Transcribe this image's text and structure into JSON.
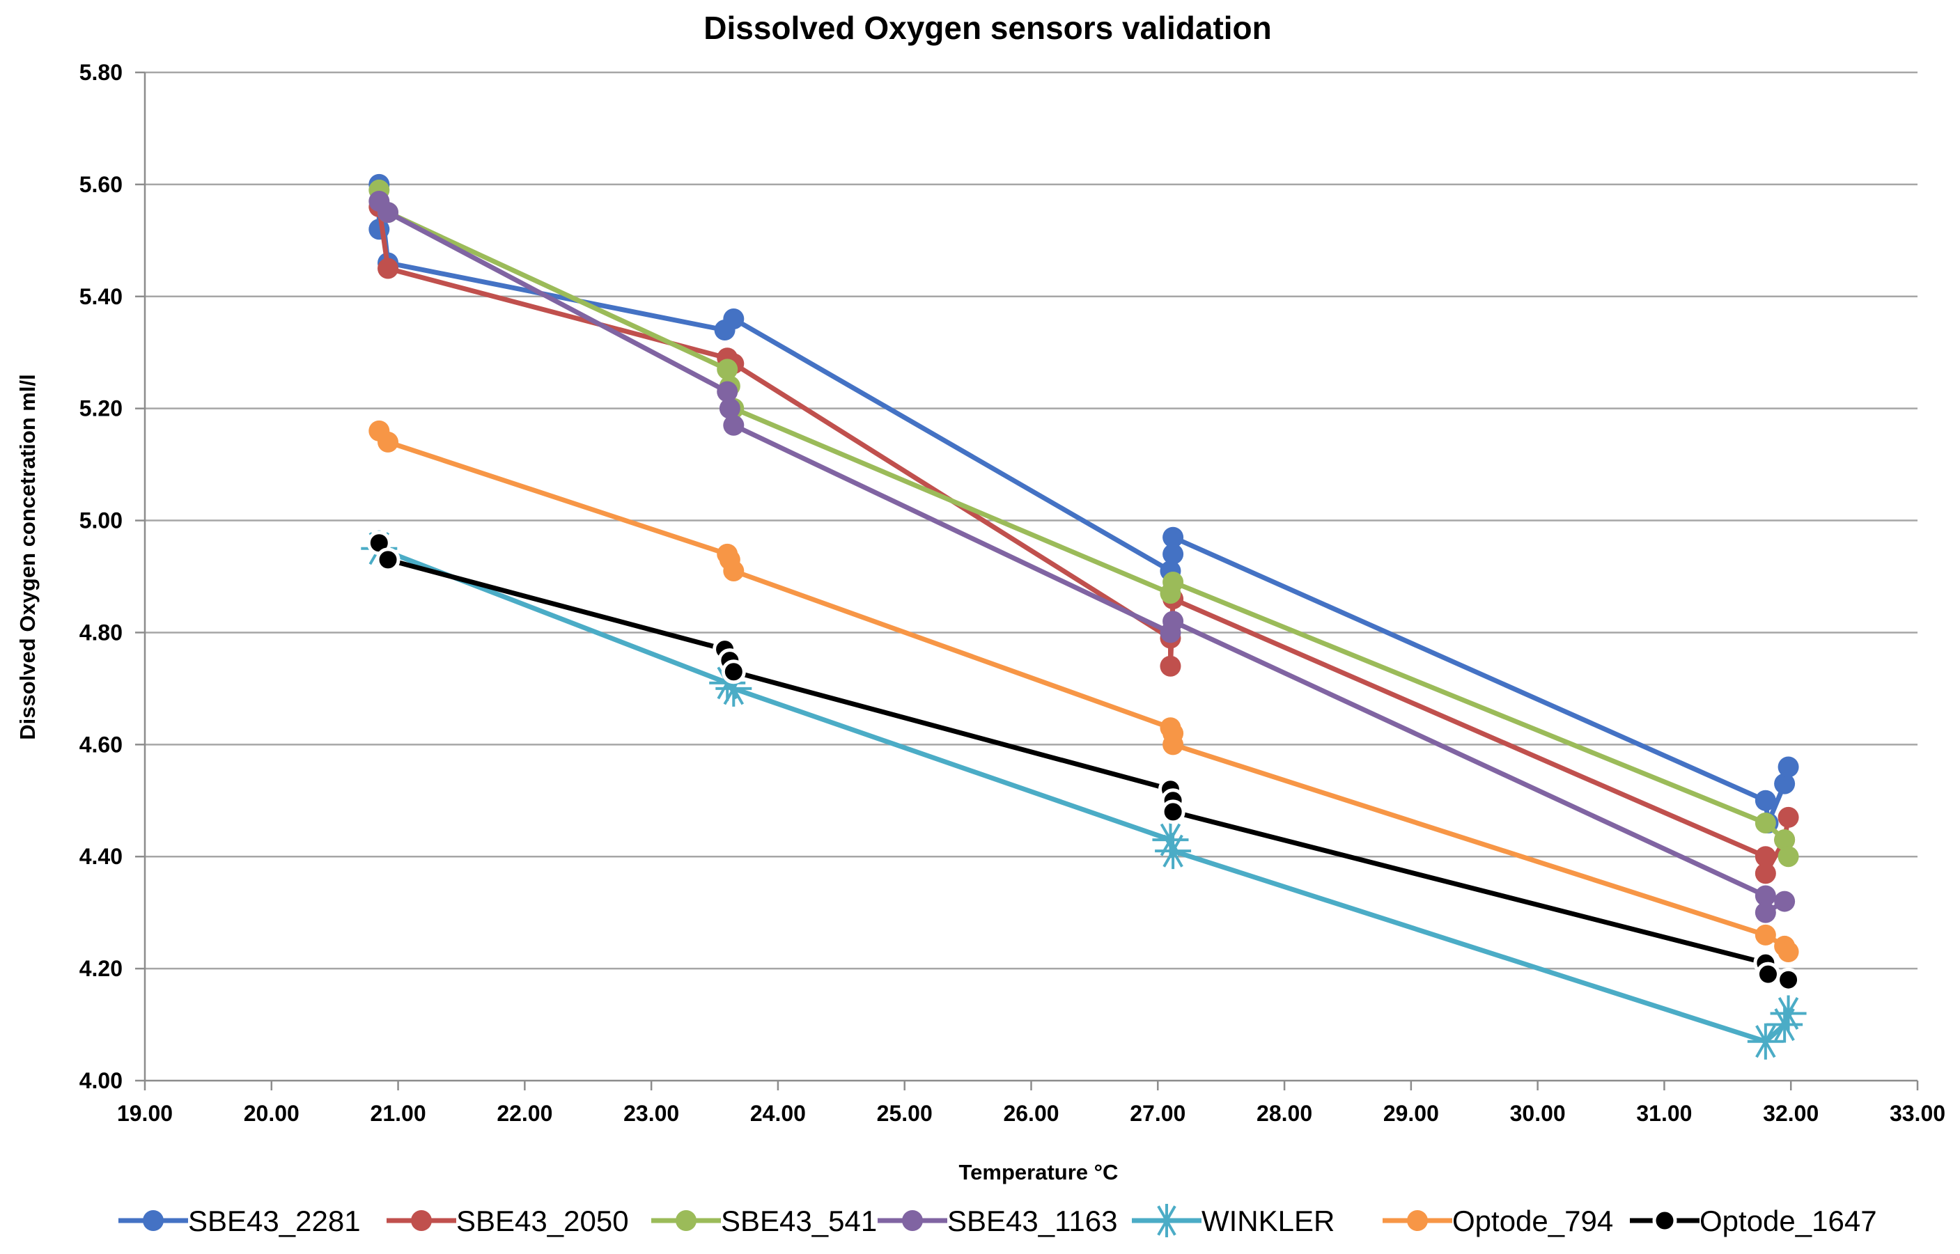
{
  "chart_data": {
    "type": "line",
    "title": "Dissolved Oxygen sensors validation",
    "xlabel": "Temperature °C",
    "ylabel": "Dissolved Oxygen concetration ml/l",
    "xlim": [
      19,
      33
    ],
    "ylim": [
      4,
      5.8
    ],
    "x_ticks": [
      "19.00",
      "20.00",
      "21.00",
      "22.00",
      "23.00",
      "24.00",
      "25.00",
      "26.00",
      "27.00",
      "28.00",
      "29.00",
      "30.00",
      "31.00",
      "32.00",
      "33.00"
    ],
    "y_ticks": [
      "4.00",
      "4.20",
      "4.40",
      "4.60",
      "4.80",
      "5.00",
      "5.20",
      "5.40",
      "5.60",
      "5.80"
    ],
    "grid": true,
    "legend_position": "bottom",
    "series": [
      {
        "name": "SBE43_2281",
        "color": "#4472c4",
        "marker": "circle",
        "points": [
          [
            20.85,
            5.52
          ],
          [
            20.85,
            5.6
          ],
          [
            20.92,
            5.46
          ],
          [
            23.58,
            5.34
          ],
          [
            23.65,
            5.36
          ],
          [
            27.1,
            4.91
          ],
          [
            27.12,
            4.94
          ],
          [
            27.12,
            4.97
          ],
          [
            31.8,
            4.5
          ],
          [
            31.82,
            4.46
          ],
          [
            31.95,
            4.53
          ],
          [
            31.98,
            4.56
          ]
        ]
      },
      {
        "name": "SBE43_2050",
        "color": "#c0504d",
        "marker": "circle",
        "points": [
          [
            20.85,
            5.56
          ],
          [
            20.92,
            5.45
          ],
          [
            23.6,
            5.29
          ],
          [
            23.65,
            5.28
          ],
          [
            27.1,
            4.79
          ],
          [
            27.1,
            4.74
          ],
          [
            27.12,
            4.86
          ],
          [
            31.8,
            4.4
          ],
          [
            31.8,
            4.37
          ],
          [
            31.95,
            4.43
          ],
          [
            31.98,
            4.47
          ]
        ]
      },
      {
        "name": "SBE43_541",
        "color": "#9bbb59",
        "marker": "circle",
        "points": [
          [
            20.85,
            5.59
          ],
          [
            20.92,
            5.55
          ],
          [
            23.6,
            5.27
          ],
          [
            23.62,
            5.24
          ],
          [
            23.65,
            5.2
          ],
          [
            27.1,
            4.87
          ],
          [
            27.12,
            4.89
          ],
          [
            31.8,
            4.46
          ],
          [
            31.95,
            4.43
          ],
          [
            31.98,
            4.4
          ]
        ]
      },
      {
        "name": "SBE43_1163",
        "color": "#8064a2",
        "marker": "circle",
        "points": [
          [
            20.85,
            5.57
          ],
          [
            20.92,
            5.55
          ],
          [
            23.6,
            5.23
          ],
          [
            23.62,
            5.2
          ],
          [
            23.65,
            5.17
          ],
          [
            27.1,
            4.8
          ],
          [
            27.12,
            4.82
          ],
          [
            31.8,
            4.33
          ],
          [
            31.8,
            4.3
          ],
          [
            31.95,
            4.32
          ]
        ]
      },
      {
        "name": "WINKLER",
        "color": "#4bacc6",
        "marker": "star",
        "points": [
          [
            20.85,
            4.95
          ],
          [
            23.6,
            4.71
          ],
          [
            23.65,
            4.7
          ],
          [
            27.1,
            4.43
          ],
          [
            27.12,
            4.41
          ],
          [
            31.8,
            4.07
          ],
          [
            31.95,
            4.1
          ],
          [
            31.98,
            4.12
          ]
        ]
      },
      {
        "name": "Optode_794",
        "color": "#f79646",
        "marker": "circle",
        "points": [
          [
            20.85,
            5.16
          ],
          [
            20.92,
            5.14
          ],
          [
            23.6,
            4.94
          ],
          [
            23.62,
            4.93
          ],
          [
            23.65,
            4.91
          ],
          [
            27.1,
            4.63
          ],
          [
            27.12,
            4.62
          ],
          [
            27.12,
            4.6
          ],
          [
            31.8,
            4.26
          ],
          [
            31.95,
            4.24
          ],
          [
            31.98,
            4.23
          ]
        ]
      },
      {
        "name": "Optode_1647",
        "color": "#000000",
        "marker": "circle",
        "points": [
          [
            20.85,
            4.96
          ],
          [
            20.92,
            4.93
          ],
          [
            23.58,
            4.77
          ],
          [
            23.62,
            4.75
          ],
          [
            23.65,
            4.73
          ],
          [
            27.1,
            4.52
          ],
          [
            27.12,
            4.5
          ],
          [
            27.12,
            4.48
          ],
          [
            31.8,
            4.21
          ],
          [
            31.82,
            4.19
          ],
          [
            31.98,
            4.18
          ]
        ]
      }
    ]
  }
}
